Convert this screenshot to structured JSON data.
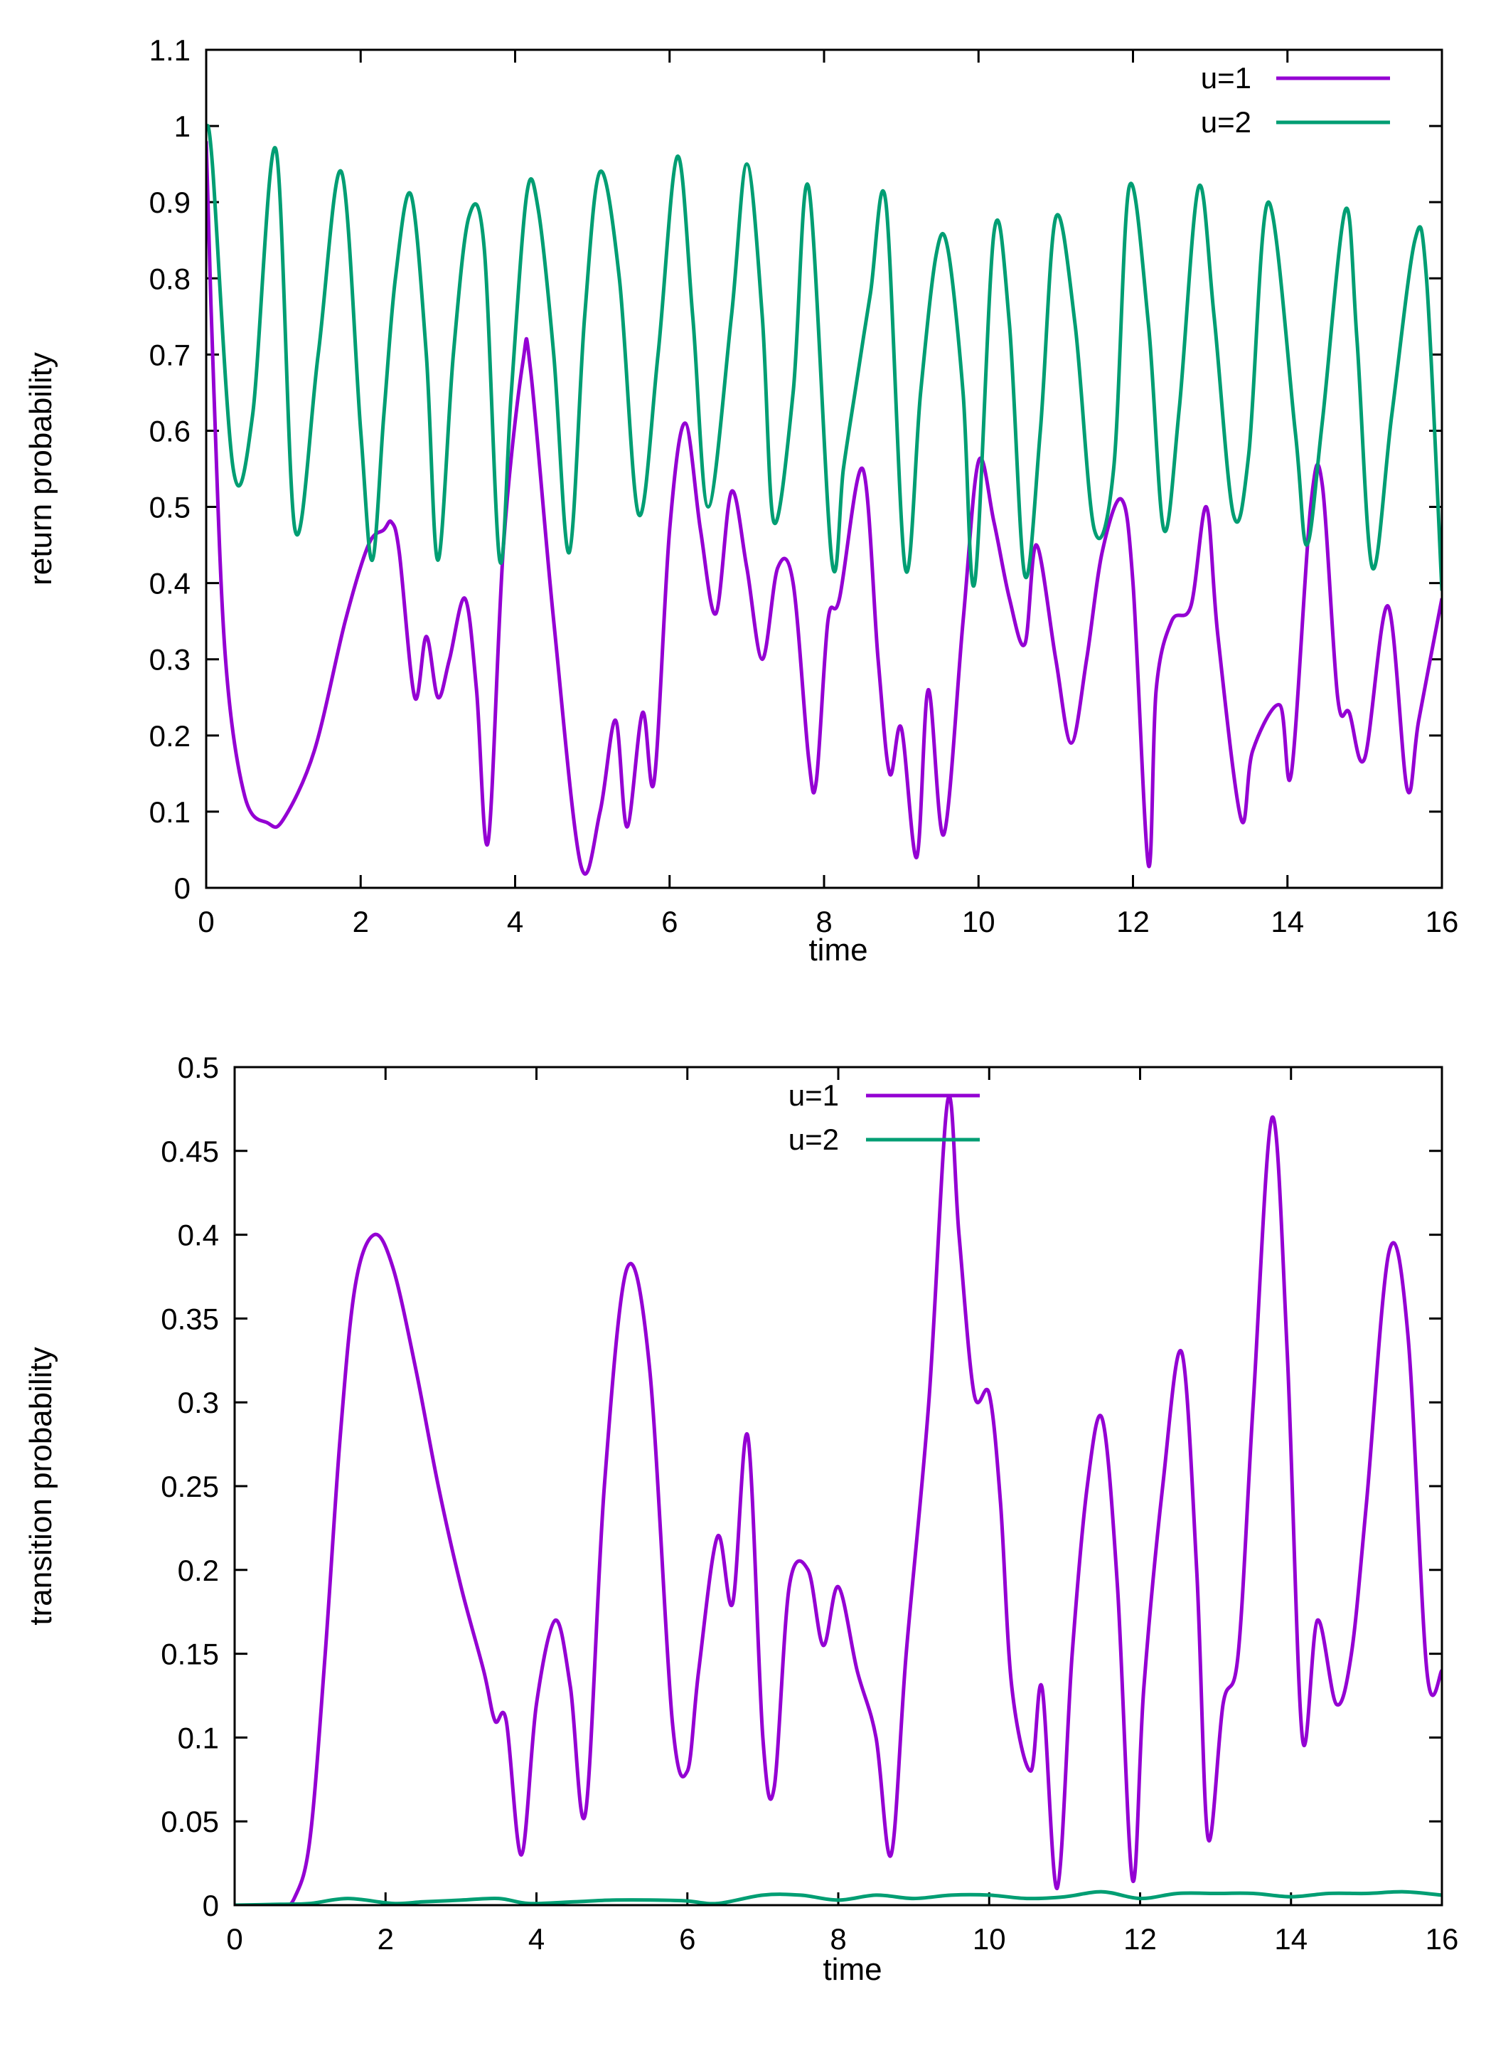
{
  "chart_data": [
    {
      "type": "line",
      "title": "",
      "xlabel": "time",
      "ylabel": "return probability",
      "xlim": [
        0,
        16
      ],
      "ylim": [
        0,
        1.1
      ],
      "xticks": [
        0,
        2,
        4,
        6,
        8,
        10,
        12,
        14,
        16
      ],
      "yticks": [
        0,
        0.1,
        0.2,
        0.3,
        0.4,
        0.5,
        0.6,
        0.7,
        0.8,
        0.9,
        1,
        1.1
      ],
      "legend_position": "top-right",
      "series": [
        {
          "name": "u=1",
          "color": "#9400d3",
          "x": [
            0,
            0.1,
            0.25,
            0.5,
            0.8,
            1.0,
            1.4,
            1.8,
            2.1,
            2.3,
            2.4,
            2.5,
            2.7,
            2.85,
            3.0,
            3.15,
            3.35,
            3.5,
            3.65,
            3.85,
            4.1,
            4.2,
            4.5,
            4.85,
            5.1,
            5.3,
            5.45,
            5.65,
            5.8,
            6.0,
            6.2,
            6.4,
            6.6,
            6.8,
            7.0,
            7.2,
            7.4,
            7.6,
            7.8,
            7.9,
            8.05,
            8.2,
            8.5,
            8.7,
            8.85,
            9.0,
            9.2,
            9.35,
            9.55,
            9.8,
            10.0,
            10.2,
            10.4,
            10.6,
            10.75,
            11.0,
            11.2,
            11.4,
            11.6,
            11.85,
            12.0,
            12.2,
            12.3,
            12.5,
            12.75,
            12.95,
            13.1,
            13.4,
            13.55,
            13.9,
            14.05,
            14.3,
            14.45,
            14.65,
            14.8,
            15.0,
            15.3,
            15.55,
            15.7,
            16.0
          ],
          "values": [
            0.98,
            0.65,
            0.3,
            0.12,
            0.085,
            0.09,
            0.18,
            0.35,
            0.45,
            0.47,
            0.48,
            0.44,
            0.25,
            0.33,
            0.25,
            0.3,
            0.38,
            0.26,
            0.06,
            0.45,
            0.69,
            0.68,
            0.35,
            0.03,
            0.1,
            0.22,
            0.08,
            0.23,
            0.14,
            0.47,
            0.61,
            0.47,
            0.36,
            0.52,
            0.42,
            0.3,
            0.42,
            0.4,
            0.17,
            0.14,
            0.35,
            0.38,
            0.55,
            0.3,
            0.15,
            0.21,
            0.04,
            0.26,
            0.07,
            0.35,
            0.56,
            0.48,
            0.38,
            0.32,
            0.45,
            0.3,
            0.19,
            0.3,
            0.44,
            0.51,
            0.4,
            0.03,
            0.26,
            0.35,
            0.37,
            0.5,
            0.33,
            0.09,
            0.18,
            0.24,
            0.15,
            0.5,
            0.53,
            0.25,
            0.23,
            0.17,
            0.37,
            0.13,
            0.22,
            0.38
          ]
        },
        {
          "name": "u=2",
          "color": "#009e73",
          "x": [
            0,
            0.08,
            0.35,
            0.6,
            0.9,
            1.15,
            1.45,
            1.75,
            2.0,
            2.15,
            2.3,
            2.45,
            2.65,
            2.85,
            3.0,
            3.2,
            3.4,
            3.6,
            3.8,
            3.95,
            4.15,
            4.3,
            4.5,
            4.7,
            4.9,
            5.1,
            5.35,
            5.6,
            5.85,
            6.1,
            6.3,
            6.5,
            6.8,
            7.0,
            7.2,
            7.35,
            7.6,
            7.8,
            8.1,
            8.25,
            8.4,
            8.6,
            8.8,
            9.05,
            9.25,
            9.45,
            9.6,
            9.8,
            9.95,
            10.2,
            10.4,
            10.6,
            10.8,
            11.0,
            11.25,
            11.5,
            11.75,
            11.95,
            12.2,
            12.4,
            12.6,
            12.85,
            13.05,
            13.3,
            13.5,
            13.75,
            14.1,
            14.25,
            14.45,
            14.75,
            14.9,
            15.1,
            15.35,
            15.65,
            15.8,
            16.0
          ],
          "values": [
            1.0,
            0.95,
            0.55,
            0.62,
            0.97,
            0.47,
            0.7,
            0.94,
            0.6,
            0.43,
            0.62,
            0.8,
            0.91,
            0.7,
            0.43,
            0.7,
            0.88,
            0.84,
            0.43,
            0.65,
            0.91,
            0.89,
            0.7,
            0.44,
            0.75,
            0.94,
            0.8,
            0.49,
            0.7,
            0.96,
            0.75,
            0.5,
            0.75,
            0.95,
            0.75,
            0.48,
            0.65,
            0.92,
            0.43,
            0.55,
            0.65,
            0.78,
            0.9,
            0.42,
            0.65,
            0.83,
            0.84,
            0.65,
            0.4,
            0.86,
            0.74,
            0.41,
            0.6,
            0.88,
            0.74,
            0.47,
            0.55,
            0.92,
            0.74,
            0.47,
            0.63,
            0.92,
            0.75,
            0.49,
            0.57,
            0.9,
            0.6,
            0.45,
            0.61,
            0.89,
            0.72,
            0.42,
            0.62,
            0.85,
            0.8,
            0.39
          ]
        }
      ]
    },
    {
      "type": "line",
      "title": "",
      "xlabel": "time",
      "ylabel": "transition probability",
      "xlim": [
        0,
        16
      ],
      "ylim": [
        0,
        0.5
      ],
      "xticks": [
        0,
        2,
        4,
        6,
        8,
        10,
        12,
        14,
        16
      ],
      "yticks": [
        0,
        0.05,
        0.1,
        0.15,
        0.2,
        0.25,
        0.3,
        0.35,
        0.4,
        0.45,
        0.5
      ],
      "legend_position": "top-center",
      "series": [
        {
          "name": "u=1",
          "color": "#9400d3",
          "x": [
            0,
            0.6,
            0.8,
            1.0,
            1.2,
            1.4,
            1.6,
            1.85,
            2.1,
            2.4,
            2.7,
            3.0,
            3.3,
            3.45,
            3.6,
            3.8,
            4.0,
            4.25,
            4.45,
            4.65,
            4.9,
            5.2,
            5.5,
            5.8,
            6.0,
            6.15,
            6.4,
            6.6,
            6.8,
            7.0,
            7.15,
            7.35,
            7.6,
            7.8,
            8.0,
            8.25,
            8.5,
            8.7,
            8.9,
            9.2,
            9.45,
            9.6,
            9.8,
            10.0,
            10.15,
            10.3,
            10.55,
            10.7,
            10.9,
            11.1,
            11.3,
            11.5,
            11.7,
            11.9,
            12.05,
            12.3,
            12.55,
            12.75,
            12.9,
            13.1,
            13.3,
            13.5,
            13.75,
            13.95,
            14.15,
            14.35,
            14.6,
            14.8,
            15.0,
            15.3,
            15.55,
            15.8,
            16.0
          ],
          "values": [
            0.0,
            0.0,
            0.005,
            0.04,
            0.15,
            0.28,
            0.37,
            0.4,
            0.38,
            0.32,
            0.25,
            0.19,
            0.14,
            0.11,
            0.11,
            0.03,
            0.12,
            0.17,
            0.13,
            0.055,
            0.25,
            0.38,
            0.32,
            0.11,
            0.08,
            0.14,
            0.22,
            0.18,
            0.28,
            0.1,
            0.07,
            0.19,
            0.2,
            0.155,
            0.19,
            0.14,
            0.1,
            0.03,
            0.15,
            0.3,
            0.48,
            0.4,
            0.305,
            0.305,
            0.24,
            0.13,
            0.08,
            0.13,
            0.01,
            0.15,
            0.25,
            0.29,
            0.19,
            0.015,
            0.13,
            0.25,
            0.33,
            0.2,
            0.04,
            0.12,
            0.15,
            0.3,
            0.47,
            0.33,
            0.1,
            0.17,
            0.12,
            0.15,
            0.24,
            0.39,
            0.34,
            0.14,
            0.14
          ]
        },
        {
          "name": "u=2",
          "color": "#009e73",
          "x": [
            0,
            0.6,
            1.0,
            1.5,
            2.1,
            2.5,
            3.0,
            3.5,
            3.9,
            4.5,
            5.0,
            5.6,
            6.0,
            6.4,
            7.0,
            7.5,
            8.0,
            8.5,
            9.0,
            9.5,
            10.0,
            10.5,
            11.0,
            11.5,
            12.0,
            12.5,
            13.0,
            13.5,
            14.0,
            14.5,
            15.0,
            15.5,
            16.0
          ],
          "values": [
            0.0,
            0.0005,
            0.001,
            0.004,
            0.001,
            0.002,
            0.003,
            0.004,
            0.001,
            0.002,
            0.003,
            0.003,
            0.0025,
            0.001,
            0.006,
            0.006,
            0.003,
            0.006,
            0.004,
            0.006,
            0.006,
            0.004,
            0.005,
            0.008,
            0.004,
            0.007,
            0.007,
            0.007,
            0.005,
            0.007,
            0.007,
            0.008,
            0.006
          ]
        }
      ]
    }
  ]
}
